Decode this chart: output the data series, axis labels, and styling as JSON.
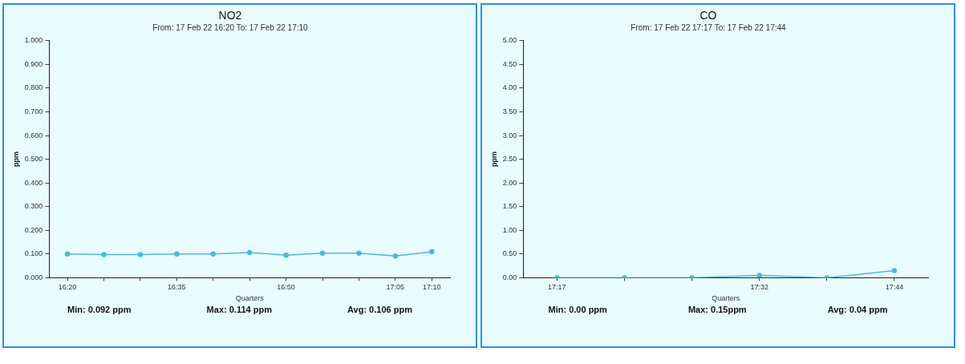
{
  "chart_data": [
    {
      "type": "line",
      "title": "NO2",
      "subtitle": "From: 17 Feb 22 16:20 To: 17 Feb 22 17:10",
      "xlabel": "Quarters",
      "ylabel": "ppm",
      "categories": [
        "16:20",
        null,
        null,
        "16:35",
        null,
        null,
        "16:50",
        null,
        null,
        "17:05",
        "17:10"
      ],
      "series": [
        {
          "color": "#4fb8d8",
          "values": [
            0.1,
            0.098,
            0.098,
            0.1,
            0.1,
            0.106,
            0.095,
            0.104,
            0.104,
            0.092,
            0.11
          ]
        }
      ],
      "ylim": [
        0,
        1
      ],
      "yticks": [
        {
          "value": 0,
          "label": "0.000"
        },
        {
          "value": 0.1,
          "label": "0.100"
        },
        {
          "value": 0.2,
          "label": "0.200"
        },
        {
          "value": 0.3,
          "label": "0.300"
        },
        {
          "value": 0.4,
          "label": "0.400"
        },
        {
          "value": 0.5,
          "label": "0.500"
        },
        {
          "value": 0.6,
          "label": "0.600"
        },
        {
          "value": 0.7,
          "label": "0.700"
        },
        {
          "value": 0.8,
          "label": "0.800"
        },
        {
          "value": 0.9,
          "label": "0.900"
        },
        {
          "value": 1,
          "label": "1.000"
        }
      ],
      "marker": "circle",
      "line_style": "solid",
      "annotations": [
        "Min: 0.092 ppm",
        "Max: 0.114 ppm",
        "Avg: 0.106 ppm"
      ]
    },
    {
      "type": "line",
      "title": "CO",
      "subtitle": "From: 17 Feb 22 17:17 To: 17 Feb 22 17:44",
      "xlabel": "Quarters",
      "ylabel": "ppm",
      "categories": [
        "17:17",
        null,
        null,
        "17:32",
        null,
        "17:44"
      ],
      "series": [
        {
          "color": "#4fb8d8",
          "values": [
            0,
            0,
            0,
            0.05,
            0,
            0.15
          ]
        }
      ],
      "ylim": [
        0,
        5
      ],
      "yticks": [
        {
          "value": 0,
          "label": "0.00"
        },
        {
          "value": 0.5,
          "label": "0.50"
        },
        {
          "value": 1,
          "label": "1.00"
        },
        {
          "value": 1.5,
          "label": "1.50"
        },
        {
          "value": 2,
          "label": "2.00"
        },
        {
          "value": 2.5,
          "label": "2.50"
        },
        {
          "value": 3,
          "label": "3.00"
        },
        {
          "value": 3.5,
          "label": "3.50"
        },
        {
          "value": 4,
          "label": "4.00"
        },
        {
          "value": 4.5,
          "label": "4.50"
        },
        {
          "value": 5,
          "label": "5.00"
        }
      ],
      "marker": "circle",
      "line_style": "solid",
      "annotations": [
        "Min: 0.00 ppm",
        "Max: 0.15ppm",
        "Avg: 0.04 ppm"
      ]
    }
  ]
}
